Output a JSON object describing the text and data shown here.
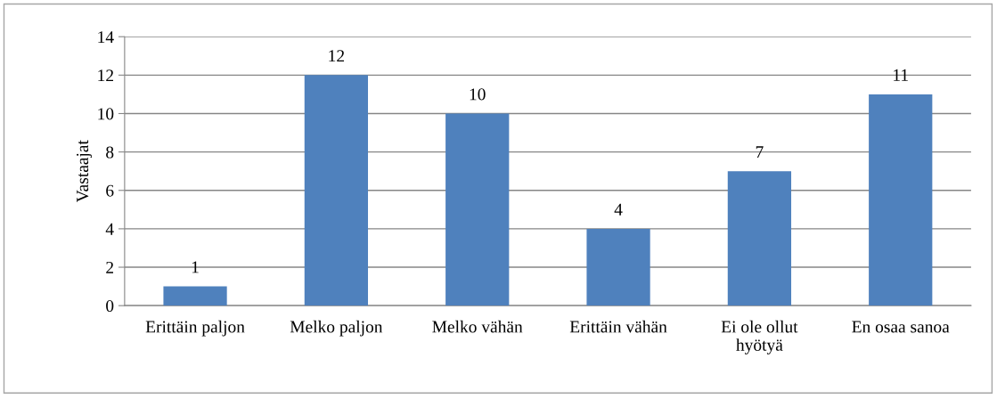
{
  "chart_data": {
    "type": "bar",
    "categories": [
      "Erittäin paljon",
      "Melko paljon",
      "Melko vähän",
      "Erittäin vähän",
      "Ei ole ollut\nhyötyä",
      "En osaa sanoa"
    ],
    "values": [
      1,
      12,
      10,
      4,
      7,
      11
    ],
    "color": "#4f81bd",
    "ylabel": "Vastaajat",
    "ylim": [
      0,
      14
    ],
    "yticks": [
      0,
      2,
      4,
      6,
      8,
      10,
      12,
      14
    ],
    "grid": "y",
    "data_labels": true
  }
}
